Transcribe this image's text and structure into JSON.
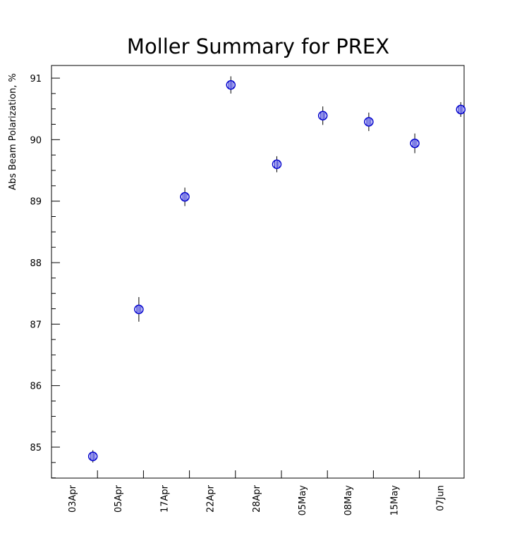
{
  "chart_data": {
    "type": "scatter",
    "title": "Moller Summary for PREX",
    "xlabel": "",
    "ylabel": "Abs Beam Polarization, %",
    "ylim": [
      84.5,
      91.2
    ],
    "yticks": [
      "85",
      "86",
      "87",
      "88",
      "89",
      "90",
      "91"
    ],
    "xticks": [
      "03Apr",
      "05Apr",
      "17Apr",
      "22Apr",
      "28Apr",
      "05May",
      "08May",
      "15May",
      "07Jun"
    ],
    "grid": false,
    "marker_color": "#0000cc",
    "points": [
      {
        "x": "03Apr",
        "y": 84.85,
        "err": 0.1
      },
      {
        "x": "05Apr",
        "y": 87.24,
        "err": 0.2
      },
      {
        "x": "17Apr",
        "y": 89.07,
        "err": 0.15
      },
      {
        "x": "22Apr",
        "y": 90.89,
        "err": 0.14
      },
      {
        "x": "28Apr",
        "y": 89.6,
        "err": 0.13
      },
      {
        "x": "05May",
        "y": 90.39,
        "err": 0.15
      },
      {
        "x": "08May",
        "y": 90.29,
        "err": 0.15
      },
      {
        "x": "15May",
        "y": 89.94,
        "err": 0.16
      },
      {
        "x": "07Jun",
        "y": 90.49,
        "err": 0.12
      }
    ]
  }
}
